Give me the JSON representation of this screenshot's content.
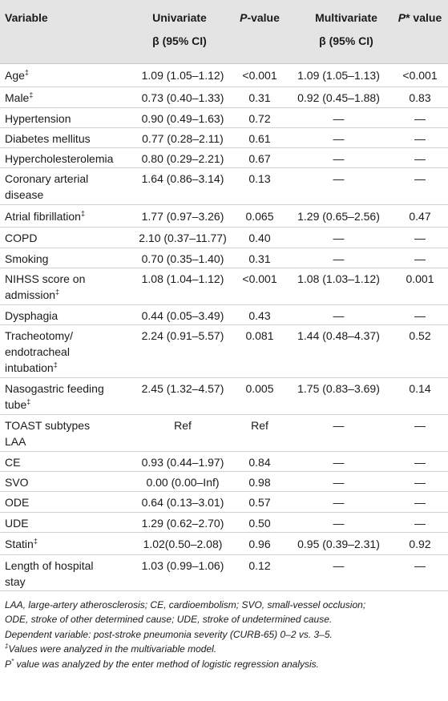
{
  "header": {
    "variable": "Variable",
    "univariate": "Univariate",
    "univariate_sub": "β (95% CI)",
    "pvalue_italic": "P",
    "pvalue_rest": "-value",
    "multivariate": "Multivariate",
    "multivariate_sub": "β (95% CI)",
    "pstar_italic": "P",
    "pstar_rest": "* value"
  },
  "rows": [
    {
      "variable": "Age",
      "mark": "‡",
      "uni": "1.09 (1.05–1.12)",
      "p": "<0.001",
      "multi": "1.09 (1.05–1.13)",
      "pstar": "<0.001"
    },
    {
      "variable": "Male",
      "mark": "‡",
      "uni": "0.73 (0.40–1.33)",
      "p": "0.31",
      "multi": "0.92 (0.45–1.88)",
      "pstar": "0.83"
    },
    {
      "variable": "Hypertension",
      "mark": "",
      "uni": "0.90 (0.49–1.63)",
      "p": "0.72",
      "multi": "—",
      "pstar": "—"
    },
    {
      "variable": "Diabetes mellitus",
      "mark": "",
      "uni": "0.77 (0.28–2.11)",
      "p": "0.61",
      "multi": "—",
      "pstar": "—"
    },
    {
      "variable": "Hypercholesterolemia",
      "mark": "",
      "uni": "0.80 (0.29–2.21)",
      "p": "0.67",
      "multi": "—",
      "pstar": "—"
    },
    {
      "variable": "Coronary arterial",
      "variable2": "disease",
      "mark": "",
      "uni": "1.64 (0.86–3.14)",
      "p": "0.13",
      "multi": "—",
      "pstar": "—"
    },
    {
      "variable": "Atrial fibrillation",
      "mark": "‡",
      "uni": "1.77 (0.97–3.26)",
      "p": "0.065",
      "multi": "1.29 (0.65–2.56)",
      "pstar": "0.47"
    },
    {
      "variable": "COPD",
      "mark": "",
      "uni": "2.10 (0.37–11.77)",
      "p": "0.40",
      "multi": "—",
      "pstar": "—"
    },
    {
      "variable": "Smoking",
      "mark": "",
      "uni": "0.70 (0.35–1.40)",
      "p": "0.31",
      "multi": "—",
      "pstar": "—"
    },
    {
      "variable": "NIHSS score on",
      "variable2": "admission",
      "mark2": "‡",
      "uni": "1.08 (1.04–1.12)",
      "p": "<0.001",
      "multi": "1.08 (1.03–1.12)",
      "pstar": "0.001"
    },
    {
      "variable": "Dysphagia",
      "mark": "",
      "uni": "0.44 (0.05–3.49)",
      "p": "0.43",
      "multi": "—",
      "pstar": "—"
    },
    {
      "variable": "Tracheotomy/",
      "variable2": "endotracheal",
      "variable3": "intubation",
      "mark3": "‡",
      "uni": "2.24 (0.91–5.57)",
      "p": "0.081",
      "multi": "1.44 (0.48–4.37)",
      "pstar": "0.52"
    },
    {
      "variable": "Nasogastric feeding",
      "variable2": "tube",
      "mark2": "‡",
      "uni": "2.45 (1.32–4.57)",
      "p": "0.005",
      "multi": "1.75 (0.83–3.69)",
      "pstar": "0.14"
    },
    {
      "variable": "TOAST subtypes",
      "variable2": "LAA",
      "mark": "",
      "uni": "Ref",
      "p": "Ref",
      "multi": "—",
      "pstar": "—"
    },
    {
      "variable": "CE",
      "mark": "",
      "uni": "0.93 (0.44–1.97)",
      "p": "0.84",
      "multi": "—",
      "pstar": "—"
    },
    {
      "variable": "SVO",
      "mark": "",
      "uni": "0.00 (0.00–Inf)",
      "p": "0.98",
      "multi": "—",
      "pstar": "—"
    },
    {
      "variable": "ODE",
      "mark": "",
      "uni": "0.64 (0.13–3.01)",
      "p": "0.57",
      "multi": "—",
      "pstar": "—"
    },
    {
      "variable": "UDE",
      "mark": "",
      "uni": "1.29 (0.62–2.70)",
      "p": "0.50",
      "multi": "—",
      "pstar": "—"
    },
    {
      "variable": "Statin",
      "mark": "‡",
      "uni": "1.02(0.50–2.08)",
      "p": "0.96",
      "multi": "0.95 (0.39–2.31)",
      "pstar": "0.92"
    },
    {
      "variable": "Length of hospital",
      "variable2": "stay",
      "mark": "",
      "uni": "1.03 (0.99–1.06)",
      "p": "0.12",
      "multi": "—",
      "pstar": "—"
    }
  ],
  "footnotes": {
    "abbrev_1": "LAA, large-artery atherosclerosis; CE, cardioembolism; SVO, small-vessel occlusion;",
    "abbrev_2": "ODE, stroke of other determined cause; UDE, stroke of undetermined cause.",
    "dependent": "Dependent variable: post-stroke pneumonia severity (CURB-65) 0–2 vs. 3–5.",
    "dagger_mark": "‡",
    "dagger_text": "Values were analyzed in the multivariable model.",
    "p_mark": "P",
    "p_star": "*",
    "p_text": " value was analyzed by the enter method of logistic regression analysis."
  }
}
